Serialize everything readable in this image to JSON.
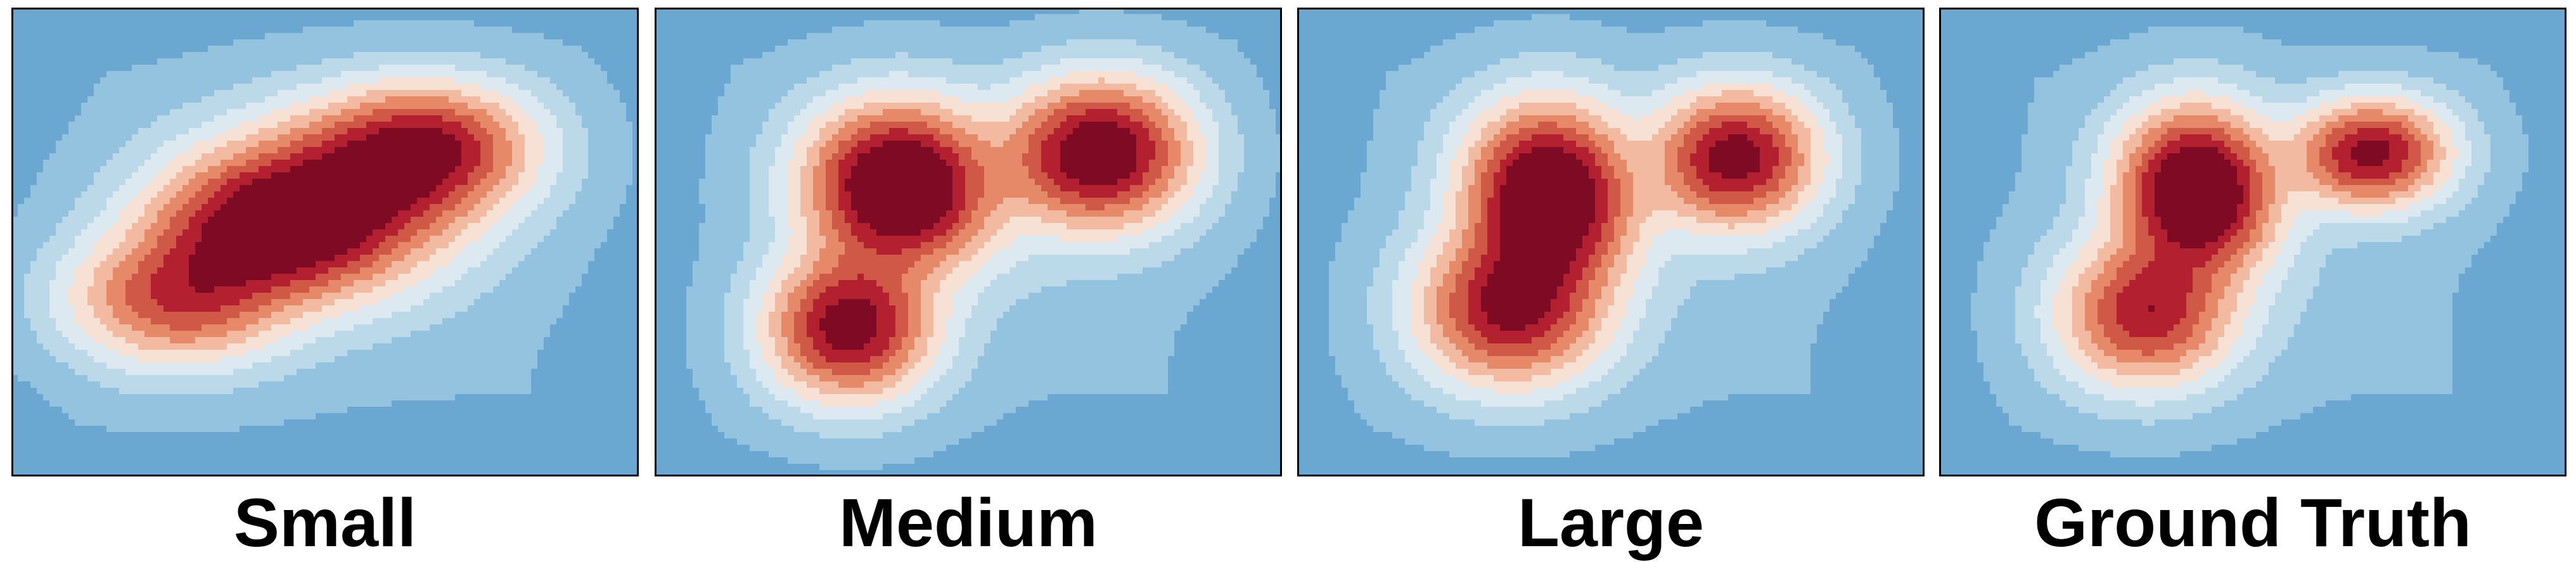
{
  "chart_data": [
    {
      "type": "heatmap",
      "title": "Small",
      "description": "Noisy density estimate: broad elongated band running diagonally from lower-left to upper-right with the densest region near the centre-left.",
      "grid": false,
      "modes": [
        {
          "x": 0.4,
          "y": 0.48,
          "weight": 1.0,
          "sx": 0.11,
          "sy": 0.09
        },
        {
          "x": 0.66,
          "y": 0.3,
          "weight": 0.9,
          "sx": 0.1,
          "sy": 0.08
        },
        {
          "x": 0.26,
          "y": 0.62,
          "weight": 0.7,
          "sx": 0.1,
          "sy": 0.08
        },
        {
          "x": 0.53,
          "y": 0.4,
          "weight": 0.8,
          "sx": 0.12,
          "sy": 0.1
        }
      ]
    },
    {
      "type": "heatmap",
      "title": "Medium",
      "description": "Three distinct high-density modes: centre-left, upper-right and lower-left.",
      "grid": false,
      "modes": [
        {
          "x": 0.39,
          "y": 0.38,
          "weight": 1.0,
          "sx": 0.085,
          "sy": 0.1
        },
        {
          "x": 0.71,
          "y": 0.31,
          "weight": 0.85,
          "sx": 0.085,
          "sy": 0.09
        },
        {
          "x": 0.31,
          "y": 0.68,
          "weight": 0.75,
          "sx": 0.075,
          "sy": 0.09
        }
      ]
    },
    {
      "type": "heatmap",
      "title": "Large",
      "description": "Density peaks at centre-left and upper-right with an extended lower-left lobe.",
      "grid": false,
      "modes": [
        {
          "x": 0.4,
          "y": 0.4,
          "weight": 1.0,
          "sx": 0.075,
          "sy": 0.11
        },
        {
          "x": 0.7,
          "y": 0.32,
          "weight": 0.75,
          "sx": 0.075,
          "sy": 0.085
        },
        {
          "x": 0.34,
          "y": 0.64,
          "weight": 0.7,
          "sx": 0.085,
          "sy": 0.095
        }
      ]
    },
    {
      "type": "heatmap",
      "title": "Ground Truth",
      "description": "Smooth mixture density: strongest peak centre-left, secondary peak upper-right, broad lower-left lobe.",
      "grid": false,
      "modes": [
        {
          "x": 0.41,
          "y": 0.39,
          "weight": 1.0,
          "sx": 0.07,
          "sy": 0.1
        },
        {
          "x": 0.69,
          "y": 0.31,
          "weight": 0.7,
          "sx": 0.07,
          "sy": 0.065
        },
        {
          "x": 0.33,
          "y": 0.65,
          "weight": 0.6,
          "sx": 0.08,
          "sy": 0.09
        }
      ]
    }
  ],
  "labels": {
    "panel_0": "Small",
    "panel_1": "Medium",
    "panel_2": "Large",
    "panel_3": "Ground Truth"
  },
  "colors": {
    "level_colors": [
      "#4a92c4",
      "#6aa8d1",
      "#94c3df",
      "#bcd9ea",
      "#dde9f1",
      "#f7e1d5",
      "#f2baa1",
      "#e58969",
      "#cf5847",
      "#b32131",
      "#7e0a23"
    ],
    "frame": "#000000"
  }
}
